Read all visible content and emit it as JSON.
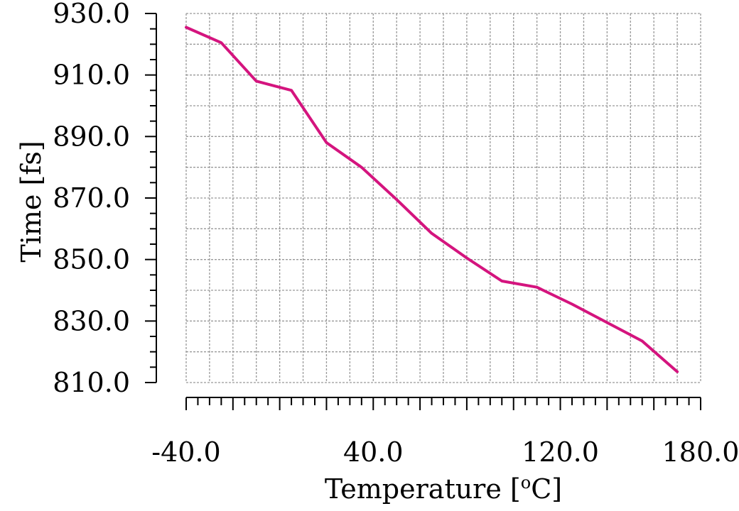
{
  "chart_data": {
    "type": "line",
    "xlabel": "Temperature [",
    "xlabel_unit": "o",
    "xlabel_end": "C]",
    "ylabel": "Time [fs]",
    "xlim": [
      -40,
      180
    ],
    "ylim": [
      810,
      930
    ],
    "xticks": [
      -40,
      40,
      120,
      180
    ],
    "xtick_labels": [
      "-40.0",
      "40.0",
      "120.0",
      "180.0"
    ],
    "yticks": [
      810,
      830,
      850,
      870,
      890,
      910,
      930
    ],
    "ytick_labels": [
      "810.0",
      "830.0",
      "850.0",
      "870.0",
      "890.0",
      "910.0",
      "930.0"
    ],
    "grid": true,
    "series": [
      {
        "color": "#d4147e",
        "x": [
          -40,
          -25,
          -10,
          5,
          20,
          35,
          50,
          65,
          80,
          95,
          110,
          125,
          140,
          155,
          170
        ],
        "y": [
          925.5,
          920.5,
          908,
          905,
          888,
          880,
          869.5,
          858.5,
          850.5,
          843,
          841,
          835.5,
          829.5,
          823.5,
          813.5
        ]
      }
    ]
  }
}
